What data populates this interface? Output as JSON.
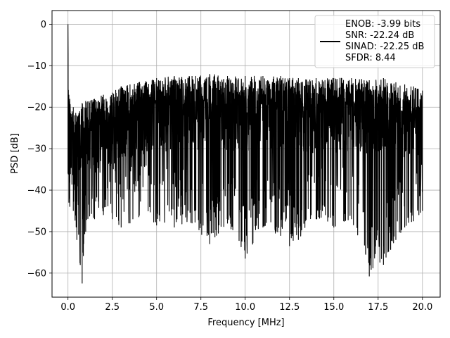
{
  "chart_data": {
    "type": "line",
    "title": "",
    "xlabel": "Frequency [MHz]",
    "ylabel": "PSD [dB]",
    "xlim": [
      -0.9,
      21.0
    ],
    "ylim": [
      -65.8,
      3.3
    ],
    "xticks": [
      0.0,
      2.5,
      5.0,
      7.5,
      10.0,
      12.5,
      15.0,
      17.5,
      20.0
    ],
    "xtick_labels": [
      "0.0",
      "2.5",
      "5.0",
      "7.5",
      "10.0",
      "12.5",
      "15.0",
      "17.5",
      "20.0"
    ],
    "yticks": [
      0,
      -10,
      -20,
      -30,
      -40,
      -50,
      -60
    ],
    "ytick_labels": [
      "0",
      "−10",
      "−20",
      "−30",
      "−40",
      "−50",
      "−60"
    ],
    "grid": true,
    "legend_position": "top-right",
    "legend_lines": [
      "ENOB: -3.99 bits",
      "SNR: -22.24 dB",
      "SINAD: -22.25 dB",
      "SFDR: 8.44"
    ],
    "line_color": "#000000",
    "notes": "Dense noise-like PSD: peak at 0 dB near 0 MHz; bulk between about -15 and -38 dB; upper envelope near -22 dB at 0.5 MHz rising to about -13 dB from 5 to 17 MHz; deep dips down to about -62.5 dB near 0.8 MHz, -60.8 dB near 17 MHz, -58 dB near 17.8 MHz, -56.5 dB near 10 MHz.",
    "series": [
      {
        "x": [
          0.0,
          0.05,
          0.1,
          0.3,
          0.5,
          0.8,
          1.0,
          1.5,
          2.0,
          2.5,
          3.0,
          3.5,
          4.0,
          5.0,
          6.0,
          7.0,
          8.0,
          9.0,
          10.0,
          11.0,
          12.0,
          12.5,
          13.0,
          14.0,
          15.0,
          16.0,
          17.0,
          17.8,
          18.5,
          19.0,
          19.5,
          20.0
        ],
        "y_upper": [
          0.0,
          -17.0,
          -18.0,
          -20.0,
          -22.0,
          -19.0,
          -18.5,
          -18.0,
          -17.0,
          -16.5,
          -15.0,
          -14.5,
          -14.0,
          -13.0,
          -12.5,
          -12.5,
          -12.0,
          -12.5,
          -12.5,
          -12.5,
          -12.5,
          -13.0,
          -13.0,
          -13.0,
          -13.0,
          -13.0,
          -13.5,
          -13.0,
          -14.0,
          -14.5,
          -15.0,
          -16.0
        ],
        "y_lower": [
          -36.0,
          -43.0,
          -44.0,
          -45.0,
          -52.0,
          -62.5,
          -50.0,
          -47.0,
          -46.0,
          -47.0,
          -49.0,
          -48.0,
          -46.5,
          -48.5,
          -49.0,
          -48.0,
          -53.0,
          -48.0,
          -56.5,
          -49.0,
          -51.0,
          -53.5,
          -52.0,
          -47.0,
          -49.0,
          -47.0,
          -60.8,
          -58.0,
          -52.0,
          -49.0,
          -47.5,
          -45.0
        ]
      }
    ]
  }
}
